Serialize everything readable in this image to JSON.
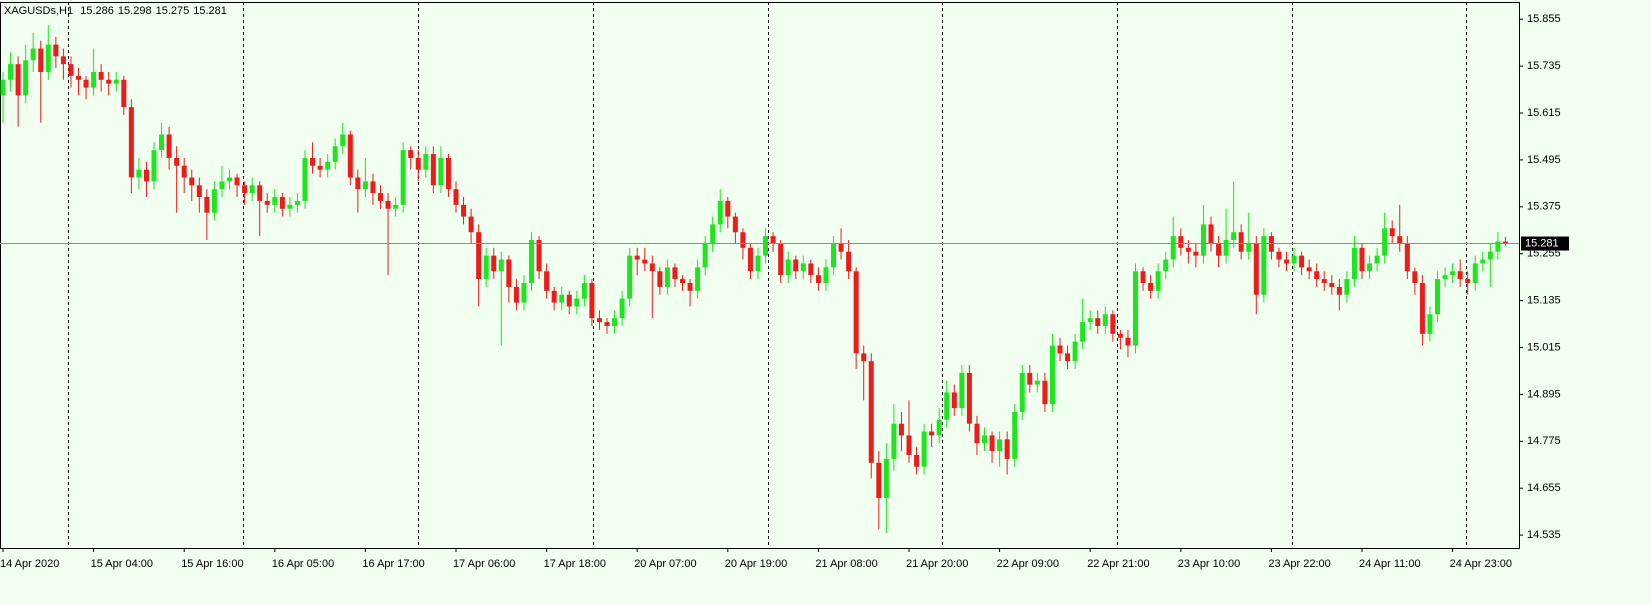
{
  "chart_data": {
    "type": "candlestick",
    "symbol": "XAGUSDs,H1",
    "up_color": "#1ee51e",
    "down_color": "#ee1b1b",
    "ylim": [
      14.502,
      15.899
    ],
    "yticks": [
      15.855,
      15.735,
      15.615,
      15.495,
      15.375,
      15.255,
      15.135,
      15.015,
      14.895,
      14.775,
      14.655,
      14.535
    ],
    "categories": [
      "14 Apr 2020",
      null,
      null,
      null,
      null,
      null,
      null,
      null,
      null,
      null,
      null,
      null,
      "15 Apr 04:00",
      null,
      null,
      null,
      null,
      null,
      null,
      null,
      null,
      null,
      null,
      null,
      "15 Apr 16:00",
      null,
      null,
      null,
      null,
      null,
      null,
      null,
      null,
      null,
      null,
      null,
      "16 Apr 05:00",
      null,
      null,
      null,
      null,
      null,
      null,
      null,
      null,
      null,
      null,
      null,
      "16 Apr 17:00",
      null,
      null,
      null,
      null,
      null,
      null,
      null,
      null,
      null,
      null,
      null,
      "17 Apr 06:00",
      null,
      null,
      null,
      null,
      null,
      null,
      null,
      null,
      null,
      null,
      null,
      "17 Apr 18:00",
      null,
      null,
      null,
      null,
      null,
      null,
      null,
      null,
      null,
      null,
      null,
      "20 Apr 07:00",
      null,
      null,
      null,
      null,
      null,
      null,
      null,
      null,
      null,
      null,
      null,
      "20 Apr 19:00",
      null,
      null,
      null,
      null,
      null,
      null,
      null,
      null,
      null,
      null,
      null,
      "21 Apr 08:00",
      null,
      null,
      null,
      null,
      null,
      null,
      null,
      null,
      null,
      null,
      null,
      "21 Apr 20:00",
      null,
      null,
      null,
      null,
      null,
      null,
      null,
      null,
      null,
      null,
      null,
      "22 Apr 09:00",
      null,
      null,
      null,
      null,
      null,
      null,
      null,
      null,
      null,
      null,
      null,
      "22 Apr 21:00",
      null,
      null,
      null,
      null,
      null,
      null,
      null,
      null,
      null,
      null,
      null,
      "23 Apr 10:00",
      null,
      null,
      null,
      null,
      null,
      null,
      null,
      null,
      null,
      null,
      null,
      "23 Apr 22:00",
      null,
      null,
      null,
      null,
      null,
      null,
      null,
      null,
      null,
      null,
      null,
      "24 Apr 11:00",
      null,
      null,
      null,
      null,
      null,
      null,
      null,
      null,
      null,
      null,
      null,
      "24 Apr 23:00",
      null,
      null,
      null,
      null,
      null,
      null,
      null
    ],
    "ohlc": [
      [
        15.66,
        15.72,
        15.59,
        15.7
      ],
      [
        15.7,
        15.77,
        15.67,
        15.74
      ],
      [
        15.74,
        15.76,
        15.58,
        15.66
      ],
      [
        15.66,
        15.79,
        15.64,
        15.75
      ],
      [
        15.75,
        15.82,
        15.72,
        15.78
      ],
      [
        15.78,
        15.8,
        15.59,
        15.72
      ],
      [
        15.72,
        15.84,
        15.7,
        15.79
      ],
      [
        15.79,
        15.81,
        15.73,
        15.76
      ],
      [
        15.76,
        15.78,
        15.7,
        15.74
      ],
      [
        15.74,
        15.76,
        15.68,
        15.71
      ],
      [
        15.71,
        15.73,
        15.66,
        15.7
      ],
      [
        15.7,
        15.71,
        15.65,
        15.68
      ],
      [
        15.68,
        15.78,
        15.66,
        15.72
      ],
      [
        15.72,
        15.74,
        15.67,
        15.7
      ],
      [
        15.7,
        15.72,
        15.66,
        15.69
      ],
      [
        15.69,
        15.72,
        15.67,
        15.7
      ],
      [
        15.7,
        15.71,
        15.61,
        15.63
      ],
      [
        15.63,
        15.65,
        15.41,
        15.45
      ],
      [
        15.45,
        15.5,
        15.42,
        15.47
      ],
      [
        15.47,
        15.49,
        15.4,
        15.44
      ],
      [
        15.44,
        15.54,
        15.42,
        15.52
      ],
      [
        15.52,
        15.59,
        15.5,
        15.56
      ],
      [
        15.56,
        15.58,
        15.47,
        15.5
      ],
      [
        15.5,
        15.53,
        15.36,
        15.48
      ],
      [
        15.48,
        15.5,
        15.41,
        15.45
      ],
      [
        15.45,
        15.47,
        15.39,
        15.43
      ],
      [
        15.43,
        15.45,
        15.36,
        15.4
      ],
      [
        15.4,
        15.42,
        15.29,
        15.36
      ],
      [
        15.36,
        15.44,
        15.34,
        15.42
      ],
      [
        15.42,
        15.48,
        15.4,
        15.44
      ],
      [
        15.44,
        15.47,
        15.42,
        15.45
      ],
      [
        15.45,
        15.46,
        15.4,
        15.43
      ],
      [
        15.43,
        15.44,
        15.38,
        15.41
      ],
      [
        15.41,
        15.45,
        15.39,
        15.43
      ],
      [
        15.43,
        15.44,
        15.3,
        15.39
      ],
      [
        15.39,
        15.41,
        15.36,
        15.38
      ],
      [
        15.38,
        15.42,
        15.36,
        15.4
      ],
      [
        15.4,
        15.41,
        15.35,
        15.37
      ],
      [
        15.37,
        15.4,
        15.35,
        15.38
      ],
      [
        15.38,
        15.41,
        15.36,
        15.39
      ],
      [
        15.39,
        15.52,
        15.37,
        15.5
      ],
      [
        15.5,
        15.54,
        15.46,
        15.48
      ],
      [
        15.48,
        15.5,
        15.45,
        15.47
      ],
      [
        15.47,
        15.51,
        15.45,
        15.49
      ],
      [
        15.49,
        15.55,
        15.47,
        15.53
      ],
      [
        15.53,
        15.59,
        15.51,
        15.56
      ],
      [
        15.56,
        15.57,
        15.43,
        15.45
      ],
      [
        15.45,
        15.47,
        15.36,
        15.42
      ],
      [
        15.42,
        15.5,
        15.4,
        15.44
      ],
      [
        15.44,
        15.46,
        15.38,
        15.41
      ],
      [
        15.41,
        15.43,
        15.37,
        15.39
      ],
      [
        15.39,
        15.41,
        15.2,
        15.37
      ],
      [
        15.37,
        15.4,
        15.35,
        15.38
      ],
      [
        15.38,
        15.54,
        15.36,
        15.52
      ],
      [
        15.52,
        15.53,
        15.47,
        15.5
      ],
      [
        15.5,
        15.52,
        15.44,
        15.47
      ],
      [
        15.47,
        15.53,
        15.45,
        15.51
      ],
      [
        15.51,
        15.53,
        15.41,
        15.43
      ],
      [
        15.43,
        15.53,
        15.41,
        15.5
      ],
      [
        15.5,
        15.51,
        15.4,
        15.42
      ],
      [
        15.42,
        15.44,
        15.36,
        15.38
      ],
      [
        15.38,
        15.4,
        15.33,
        15.35
      ],
      [
        15.35,
        15.37,
        15.28,
        15.31
      ],
      [
        15.31,
        15.33,
        15.12,
        15.19
      ],
      [
        15.19,
        15.27,
        15.17,
        15.25
      ],
      [
        15.25,
        15.27,
        15.19,
        15.21
      ],
      [
        15.21,
        15.26,
        15.02,
        15.24
      ],
      [
        15.24,
        15.25,
        15.13,
        15.17
      ],
      [
        15.17,
        15.19,
        15.11,
        15.13
      ],
      [
        15.13,
        15.2,
        15.11,
        15.18
      ],
      [
        15.18,
        15.31,
        15.16,
        15.29
      ],
      [
        15.29,
        15.3,
        15.19,
        15.21
      ],
      [
        15.21,
        15.23,
        15.14,
        15.16
      ],
      [
        15.16,
        15.17,
        15.11,
        15.13
      ],
      [
        15.13,
        15.17,
        15.11,
        15.15
      ],
      [
        15.15,
        15.16,
        15.1,
        15.12
      ],
      [
        15.12,
        15.16,
        15.1,
        15.14
      ],
      [
        15.14,
        15.2,
        15.12,
        15.18
      ],
      [
        15.18,
        15.19,
        15.07,
        15.09
      ],
      [
        15.09,
        15.11,
        15.06,
        15.08
      ],
      [
        15.08,
        15.09,
        15.05,
        15.07
      ],
      [
        15.07,
        15.11,
        15.05,
        15.09
      ],
      [
        15.09,
        15.16,
        15.07,
        15.14
      ],
      [
        15.14,
        15.27,
        15.12,
        15.25
      ],
      [
        15.25,
        15.27,
        15.2,
        15.24
      ],
      [
        15.24,
        15.27,
        15.21,
        15.23
      ],
      [
        15.23,
        15.25,
        15.09,
        15.21
      ],
      [
        15.21,
        15.22,
        15.15,
        15.17
      ],
      [
        15.17,
        15.24,
        15.15,
        15.22
      ],
      [
        15.22,
        15.23,
        15.17,
        15.19
      ],
      [
        15.19,
        15.2,
        15.16,
        15.18
      ],
      [
        15.18,
        15.19,
        15.12,
        15.16
      ],
      [
        15.16,
        15.24,
        15.14,
        15.22
      ],
      [
        15.22,
        15.3,
        15.2,
        15.28
      ],
      [
        15.28,
        15.35,
        15.26,
        15.33
      ],
      [
        15.33,
        15.42,
        15.31,
        15.39
      ],
      [
        15.39,
        15.4,
        15.32,
        15.35
      ],
      [
        15.35,
        15.36,
        15.28,
        15.31
      ],
      [
        15.31,
        15.32,
        15.24,
        15.27
      ],
      [
        15.27,
        15.28,
        15.19,
        15.21
      ],
      [
        15.21,
        15.27,
        15.19,
        15.25
      ],
      [
        15.25,
        15.32,
        15.23,
        15.3
      ],
      [
        15.3,
        15.31,
        15.26,
        15.28
      ],
      [
        15.28,
        15.29,
        15.18,
        15.2
      ],
      [
        15.2,
        15.26,
        15.18,
        15.24
      ],
      [
        15.24,
        15.25,
        15.19,
        15.21
      ],
      [
        15.21,
        15.25,
        15.19,
        15.23
      ],
      [
        15.23,
        15.24,
        15.18,
        15.2
      ],
      [
        15.2,
        15.22,
        15.16,
        15.18
      ],
      [
        15.18,
        15.24,
        15.16,
        15.22
      ],
      [
        15.22,
        15.3,
        15.2,
        15.28
      ],
      [
        15.28,
        15.32,
        15.24,
        15.26
      ],
      [
        15.26,
        15.29,
        15.19,
        15.21
      ],
      [
        15.21,
        15.22,
        14.96,
        15.0
      ],
      [
        15.0,
        15.02,
        14.88,
        14.98
      ],
      [
        14.98,
        15.0,
        14.68,
        14.72
      ],
      [
        14.72,
        14.75,
        14.55,
        14.63
      ],
      [
        14.63,
        14.77,
        14.54,
        14.73
      ],
      [
        14.73,
        14.87,
        14.7,
        14.82
      ],
      [
        14.82,
        14.85,
        14.75,
        14.79
      ],
      [
        14.79,
        14.88,
        14.72,
        14.74
      ],
      [
        14.74,
        14.76,
        14.69,
        14.71
      ],
      [
        14.71,
        14.82,
        14.69,
        14.8
      ],
      [
        14.8,
        14.82,
        14.76,
        14.79
      ],
      [
        14.79,
        14.86,
        14.77,
        14.83
      ],
      [
        14.83,
        14.93,
        14.81,
        14.9
      ],
      [
        14.9,
        14.92,
        14.84,
        14.86
      ],
      [
        14.86,
        14.97,
        14.84,
        14.95
      ],
      [
        14.95,
        14.97,
        14.8,
        14.82
      ],
      [
        14.82,
        14.84,
        14.74,
        14.77
      ],
      [
        14.77,
        14.81,
        14.75,
        14.79
      ],
      [
        14.79,
        14.8,
        14.72,
        14.75
      ],
      [
        14.75,
        14.8,
        14.71,
        14.78
      ],
      [
        14.78,
        14.8,
        14.69,
        14.73
      ],
      [
        14.73,
        14.87,
        14.71,
        14.85
      ],
      [
        14.85,
        14.97,
        14.83,
        14.95
      ],
      [
        14.95,
        14.97,
        14.9,
        14.92
      ],
      [
        14.92,
        14.95,
        14.9,
        14.93
      ],
      [
        14.93,
        14.95,
        14.85,
        14.87
      ],
      [
        14.87,
        15.05,
        14.85,
        15.02
      ],
      [
        15.02,
        15.04,
        14.98,
        15.0
      ],
      [
        15.0,
        15.02,
        14.96,
        14.98
      ],
      [
        14.98,
        15.05,
        14.96,
        15.03
      ],
      [
        15.03,
        15.14,
        15.01,
        15.08
      ],
      [
        15.08,
        15.11,
        15.06,
        15.09
      ],
      [
        15.09,
        15.11,
        15.05,
        15.07
      ],
      [
        15.07,
        15.12,
        15.05,
        15.1
      ],
      [
        15.1,
        15.11,
        15.03,
        15.05
      ],
      [
        15.05,
        15.06,
        15.01,
        15.04
      ],
      [
        15.04,
        15.06,
        14.99,
        15.02
      ],
      [
        15.02,
        15.23,
        15.0,
        15.21
      ],
      [
        15.21,
        15.22,
        15.16,
        15.18
      ],
      [
        15.18,
        15.2,
        15.14,
        15.16
      ],
      [
        15.16,
        15.23,
        15.14,
        15.21
      ],
      [
        15.21,
        15.26,
        15.19,
        15.24
      ],
      [
        15.24,
        15.35,
        15.22,
        15.3
      ],
      [
        15.3,
        15.32,
        15.25,
        15.27
      ],
      [
        15.27,
        15.29,
        15.23,
        15.26
      ],
      [
        15.26,
        15.28,
        15.22,
        15.25
      ],
      [
        15.25,
        15.38,
        15.23,
        15.33
      ],
      [
        15.33,
        15.35,
        15.26,
        15.28
      ],
      [
        15.28,
        15.3,
        15.22,
        15.25
      ],
      [
        15.25,
        15.37,
        15.23,
        15.29
      ],
      [
        15.29,
        15.44,
        15.27,
        15.31
      ],
      [
        15.31,
        15.33,
        15.24,
        15.26
      ],
      [
        15.26,
        15.36,
        15.24,
        15.28
      ],
      [
        15.28,
        15.3,
        15.1,
        15.15
      ],
      [
        15.15,
        15.32,
        15.13,
        15.3
      ],
      [
        15.3,
        15.31,
        15.24,
        15.26
      ],
      [
        15.26,
        15.27,
        15.22,
        15.24
      ],
      [
        15.24,
        15.26,
        15.21,
        15.23
      ],
      [
        15.23,
        15.27,
        15.21,
        15.25
      ],
      [
        15.25,
        15.26,
        15.2,
        15.22
      ],
      [
        15.22,
        15.24,
        15.19,
        15.21
      ],
      [
        15.21,
        15.23,
        15.17,
        15.19
      ],
      [
        15.19,
        15.21,
        15.16,
        15.18
      ],
      [
        15.18,
        15.2,
        15.15,
        15.17
      ],
      [
        15.17,
        15.19,
        15.11,
        15.15
      ],
      [
        15.15,
        15.21,
        15.13,
        15.19
      ],
      [
        15.19,
        15.3,
        15.17,
        15.27
      ],
      [
        15.27,
        15.28,
        15.19,
        15.21
      ],
      [
        15.21,
        15.25,
        15.19,
        15.23
      ],
      [
        15.23,
        15.27,
        15.21,
        15.25
      ],
      [
        15.25,
        15.36,
        15.23,
        15.32
      ],
      [
        15.32,
        15.34,
        15.28,
        15.3
      ],
      [
        15.3,
        15.38,
        15.26,
        15.28
      ],
      [
        15.28,
        15.3,
        15.19,
        15.21
      ],
      [
        15.21,
        15.22,
        15.15,
        15.18
      ],
      [
        15.18,
        15.2,
        15.02,
        15.05
      ],
      [
        15.05,
        15.12,
        15.03,
        15.1
      ],
      [
        15.1,
        15.21,
        15.08,
        15.19
      ],
      [
        15.19,
        15.22,
        15.17,
        15.2
      ],
      [
        15.2,
        15.23,
        15.18,
        15.21
      ],
      [
        15.21,
        15.24,
        15.17,
        15.19
      ],
      [
        15.19,
        15.21,
        15.15,
        15.18
      ],
      [
        15.18,
        15.25,
        15.16,
        15.23
      ],
      [
        15.23,
        15.26,
        15.21,
        15.24
      ],
      [
        15.24,
        15.28,
        15.17,
        15.26
      ],
      [
        15.26,
        15.31,
        15.24,
        15.286
      ],
      [
        15.286,
        15.298,
        15.275,
        15.281
      ]
    ]
  }
}
